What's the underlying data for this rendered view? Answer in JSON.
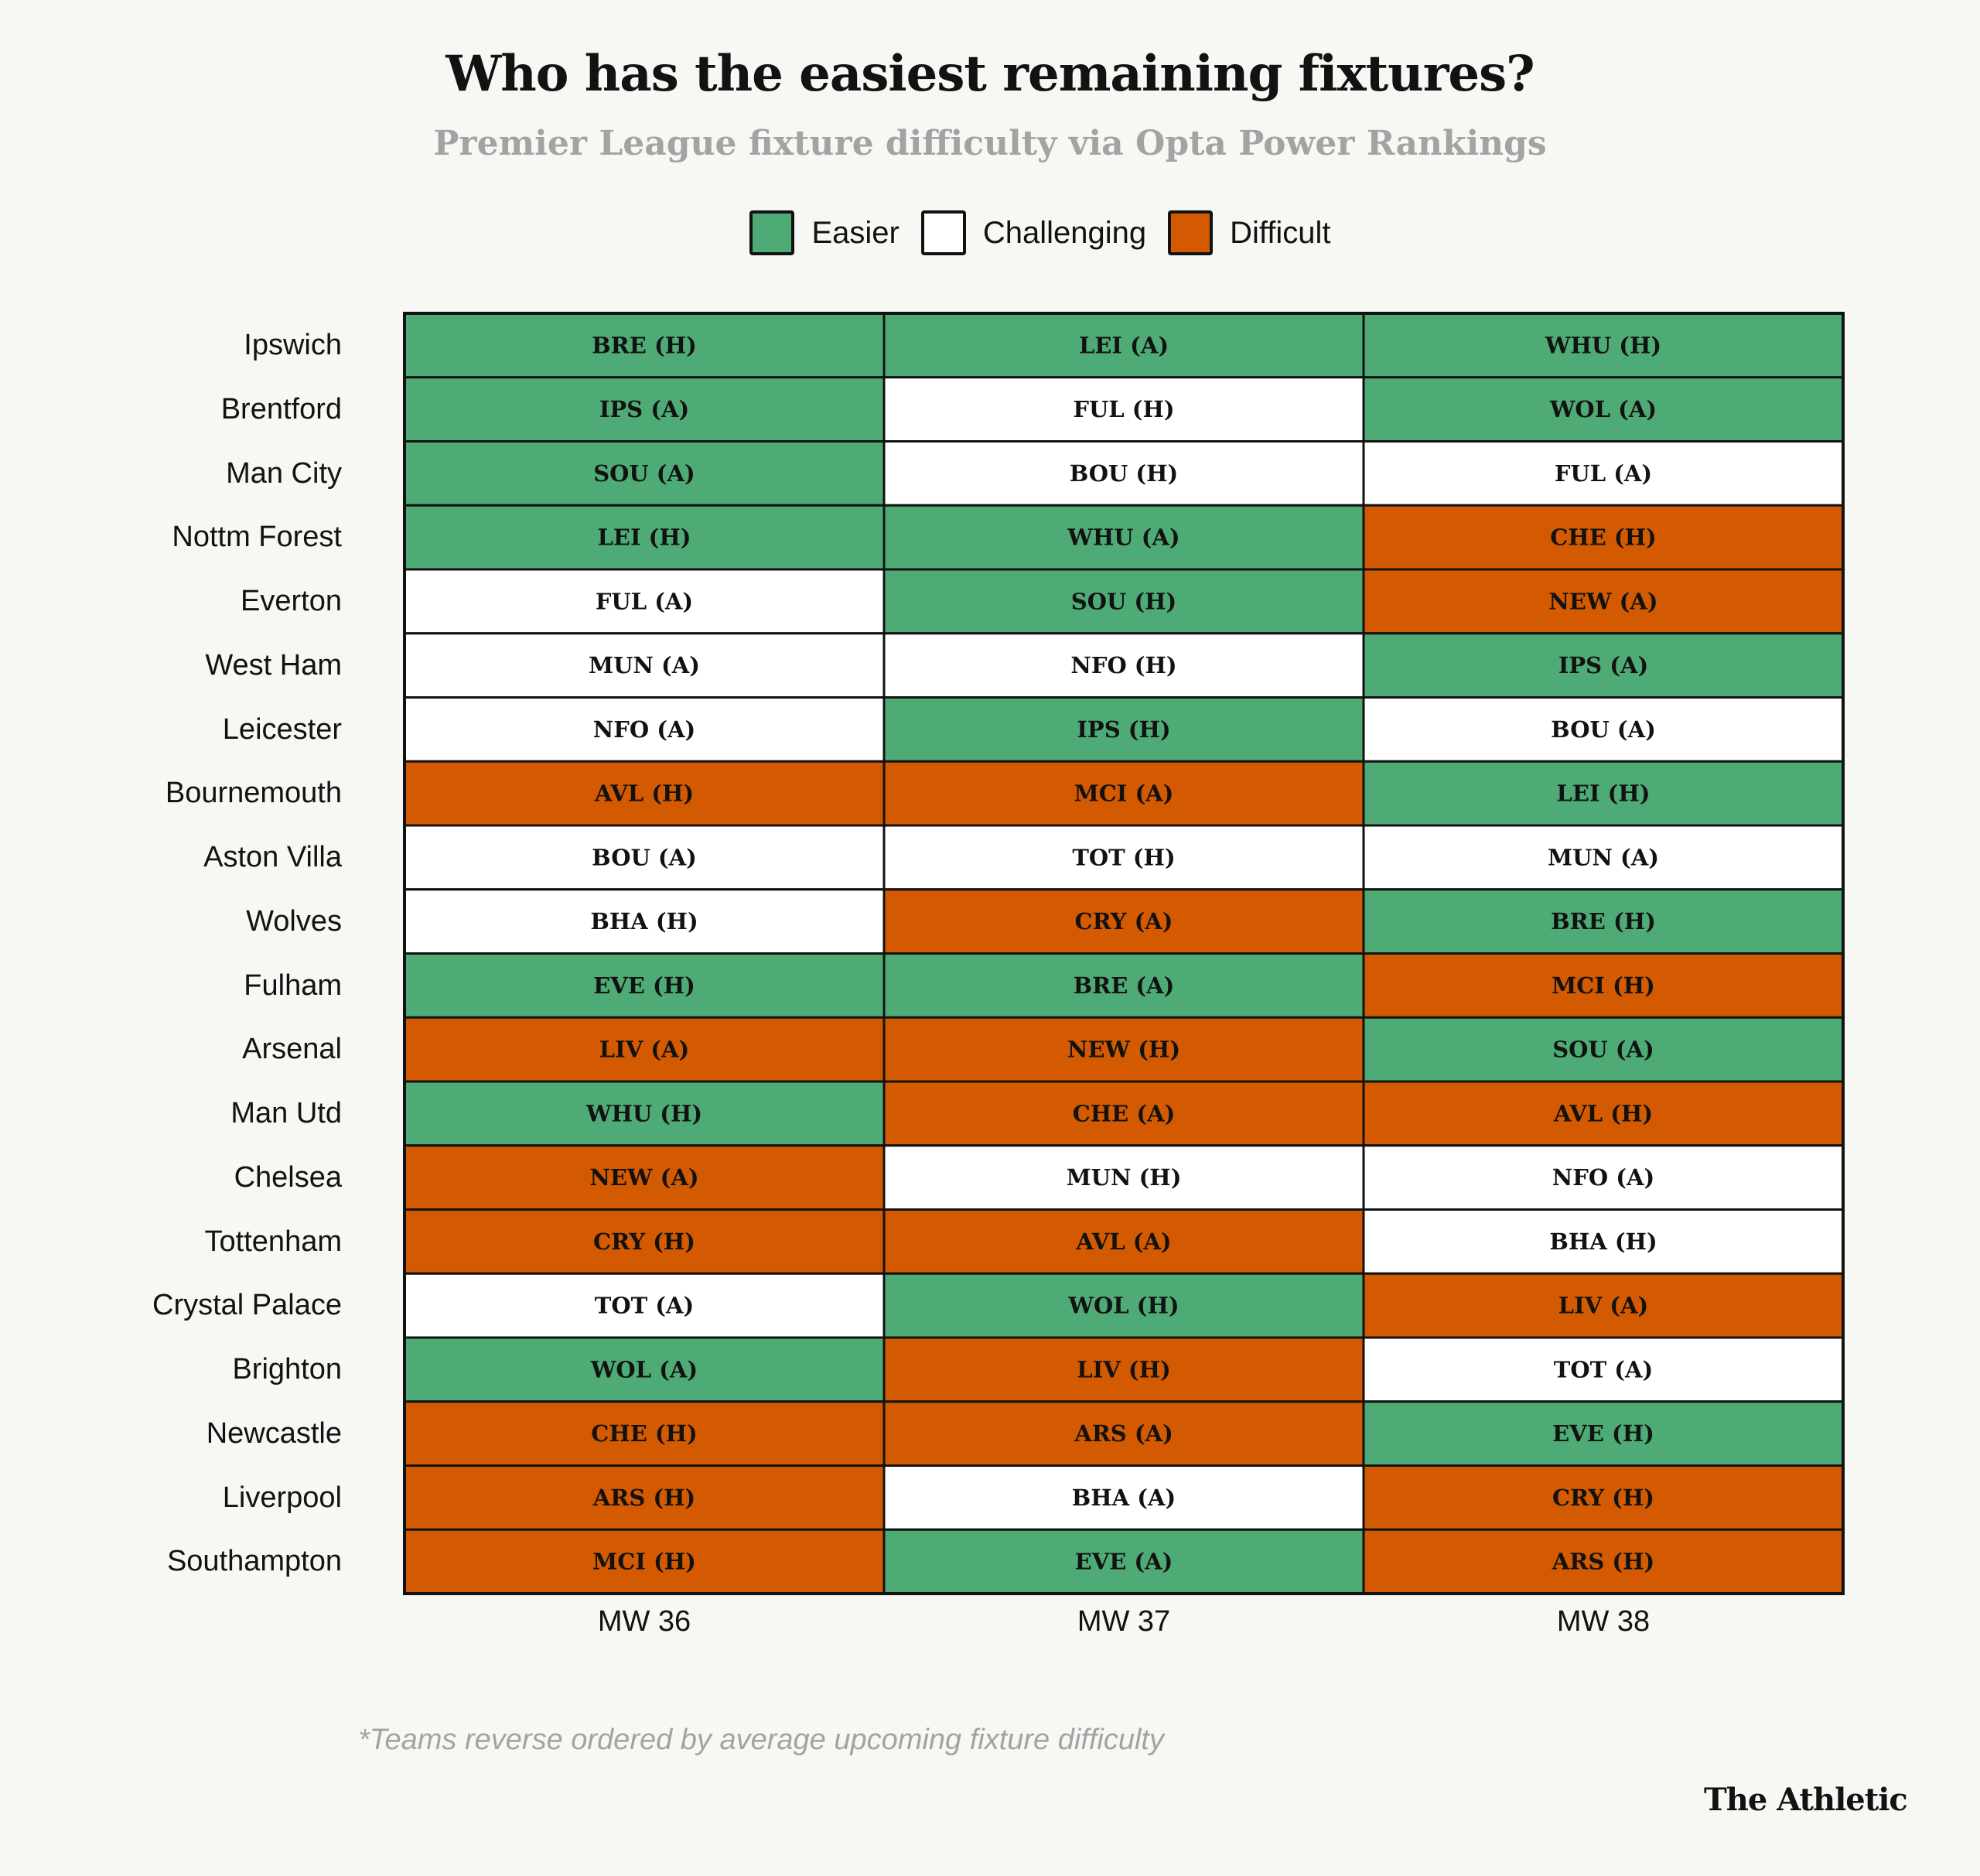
{
  "title": "Who has the easiest remaining fixtures?",
  "subtitle": "Premier League fixture difficulty via Opta Power Rankings",
  "legend": [
    {
      "label": "Easier",
      "level": "easier",
      "color": "#4fab76"
    },
    {
      "label": "Challenging",
      "level": "challenging",
      "color": "#ffffff"
    },
    {
      "label": "Difficult",
      "level": "difficult",
      "color": "#d35a00"
    }
  ],
  "footnote": "*Teams reverse ordered by average upcoming fixture difficulty",
  "brand": "The Athletic",
  "chart_data": {
    "type": "heatmap",
    "title": "Who has the easiest remaining fixtures?",
    "subtitle": "Premier League fixture difficulty via Opta Power Rankings",
    "columns": [
      "MW 36",
      "MW 37",
      "MW 38"
    ],
    "rows": [
      {
        "team": "Ipswich",
        "fixtures": [
          {
            "opp": "BRE (H)",
            "level": "easier"
          },
          {
            "opp": "LEI (A)",
            "level": "easier"
          },
          {
            "opp": "WHU (H)",
            "level": "easier"
          }
        ]
      },
      {
        "team": "Brentford",
        "fixtures": [
          {
            "opp": "IPS (A)",
            "level": "easier"
          },
          {
            "opp": "FUL (H)",
            "level": "challenging"
          },
          {
            "opp": "WOL (A)",
            "level": "easier"
          }
        ]
      },
      {
        "team": "Man City",
        "fixtures": [
          {
            "opp": "SOU (A)",
            "level": "easier"
          },
          {
            "opp": "BOU (H)",
            "level": "challenging"
          },
          {
            "opp": "FUL (A)",
            "level": "challenging"
          }
        ]
      },
      {
        "team": "Nottm Forest",
        "fixtures": [
          {
            "opp": "LEI (H)",
            "level": "easier"
          },
          {
            "opp": "WHU (A)",
            "level": "easier"
          },
          {
            "opp": "CHE (H)",
            "level": "difficult"
          }
        ]
      },
      {
        "team": "Everton",
        "fixtures": [
          {
            "opp": "FUL (A)",
            "level": "challenging"
          },
          {
            "opp": "SOU (H)",
            "level": "easier"
          },
          {
            "opp": "NEW (A)",
            "level": "difficult"
          }
        ]
      },
      {
        "team": "West Ham",
        "fixtures": [
          {
            "opp": "MUN (A)",
            "level": "challenging"
          },
          {
            "opp": "NFO (H)",
            "level": "challenging"
          },
          {
            "opp": "IPS (A)",
            "level": "easier"
          }
        ]
      },
      {
        "team": "Leicester",
        "fixtures": [
          {
            "opp": "NFO (A)",
            "level": "challenging"
          },
          {
            "opp": "IPS (H)",
            "level": "easier"
          },
          {
            "opp": "BOU (A)",
            "level": "challenging"
          }
        ]
      },
      {
        "team": "Bournemouth",
        "fixtures": [
          {
            "opp": "AVL (H)",
            "level": "difficult"
          },
          {
            "opp": "MCI (A)",
            "level": "difficult"
          },
          {
            "opp": "LEI (H)",
            "level": "easier"
          }
        ]
      },
      {
        "team": "Aston Villa",
        "fixtures": [
          {
            "opp": "BOU (A)",
            "level": "challenging"
          },
          {
            "opp": "TOT (H)",
            "level": "challenging"
          },
          {
            "opp": "MUN (A)",
            "level": "challenging"
          }
        ]
      },
      {
        "team": "Wolves",
        "fixtures": [
          {
            "opp": "BHA (H)",
            "level": "challenging"
          },
          {
            "opp": "CRY (A)",
            "level": "difficult"
          },
          {
            "opp": "BRE (H)",
            "level": "easier"
          }
        ]
      },
      {
        "team": "Fulham",
        "fixtures": [
          {
            "opp": "EVE (H)",
            "level": "easier"
          },
          {
            "opp": "BRE (A)",
            "level": "easier"
          },
          {
            "opp": "MCI (H)",
            "level": "difficult"
          }
        ]
      },
      {
        "team": "Arsenal",
        "fixtures": [
          {
            "opp": "LIV (A)",
            "level": "difficult"
          },
          {
            "opp": "NEW (H)",
            "level": "difficult"
          },
          {
            "opp": "SOU (A)",
            "level": "easier"
          }
        ]
      },
      {
        "team": "Man Utd",
        "fixtures": [
          {
            "opp": "WHU (H)",
            "level": "easier"
          },
          {
            "opp": "CHE (A)",
            "level": "difficult"
          },
          {
            "opp": "AVL (H)",
            "level": "difficult"
          }
        ]
      },
      {
        "team": "Chelsea",
        "fixtures": [
          {
            "opp": "NEW (A)",
            "level": "difficult"
          },
          {
            "opp": "MUN (H)",
            "level": "challenging"
          },
          {
            "opp": "NFO (A)",
            "level": "challenging"
          }
        ]
      },
      {
        "team": "Tottenham",
        "fixtures": [
          {
            "opp": "CRY (H)",
            "level": "difficult"
          },
          {
            "opp": "AVL (A)",
            "level": "difficult"
          },
          {
            "opp": "BHA (H)",
            "level": "challenging"
          }
        ]
      },
      {
        "team": "Crystal Palace",
        "fixtures": [
          {
            "opp": "TOT (A)",
            "level": "challenging"
          },
          {
            "opp": "WOL (H)",
            "level": "easier"
          },
          {
            "opp": "LIV (A)",
            "level": "difficult"
          }
        ]
      },
      {
        "team": "Brighton",
        "fixtures": [
          {
            "opp": "WOL (A)",
            "level": "easier"
          },
          {
            "opp": "LIV (H)",
            "level": "difficult"
          },
          {
            "opp": "TOT (A)",
            "level": "challenging"
          }
        ]
      },
      {
        "team": "Newcastle",
        "fixtures": [
          {
            "opp": "CHE (H)",
            "level": "difficult"
          },
          {
            "opp": "ARS (A)",
            "level": "difficult"
          },
          {
            "opp": "EVE (H)",
            "level": "easier"
          }
        ]
      },
      {
        "team": "Liverpool",
        "fixtures": [
          {
            "opp": "ARS (H)",
            "level": "difficult"
          },
          {
            "opp": "BHA (A)",
            "level": "challenging"
          },
          {
            "opp": "CRY (H)",
            "level": "difficult"
          }
        ]
      },
      {
        "team": "Southampton",
        "fixtures": [
          {
            "opp": "MCI (H)",
            "level": "difficult"
          },
          {
            "opp": "EVE (A)",
            "level": "easier"
          },
          {
            "opp": "ARS (H)",
            "level": "difficult"
          }
        ]
      }
    ]
  }
}
